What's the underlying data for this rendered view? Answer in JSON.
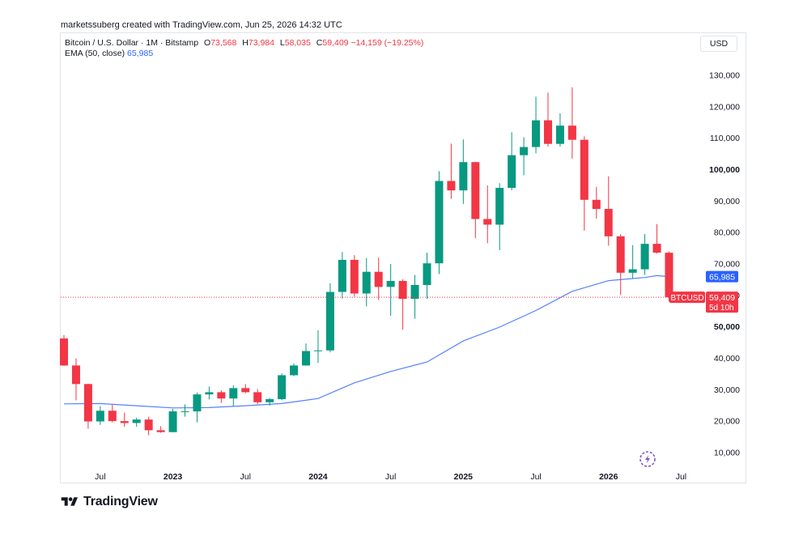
{
  "credit": "marketssuberg created with TradingView.com, Jun 25, 2026 14:32 UTC",
  "legend": {
    "symbol": "Bitcoin / U.S. Dollar · 1M · Bitstamp",
    "o_key": "O",
    "o_val": "73,568",
    "h_key": "H",
    "h_val": "73,984",
    "l_key": "L",
    "l_val": "58,035",
    "c_key": "C",
    "c_val": "59,409",
    "change": "−14,159 (−19.25%)",
    "ema_label": "EMA (50, close)",
    "ema_val": "65,985"
  },
  "currency": "USD",
  "brand": "TradingView",
  "colors": {
    "up": "#089981",
    "down": "#f23645",
    "ema": "#2962ff",
    "grid": "#f0f3fa",
    "text": "#131722"
  },
  "chart_data": {
    "type": "candlestick",
    "y_axis": {
      "min": 2000,
      "max": 138000,
      "position": "right",
      "ticks": [
        10000,
        20000,
        30000,
        40000,
        50000,
        60000,
        70000,
        80000,
        90000,
        100000,
        110000,
        120000,
        130000
      ],
      "tick_labels": [
        "10,000",
        "20,000",
        "30,000",
        "40,000",
        "50,000",
        "60,000",
        "70,000",
        "80,000",
        "90,000",
        "100,000",
        "110,000",
        "120,000",
        "130,000"
      ],
      "bold_labels": [
        "50,000",
        "100,000"
      ]
    },
    "x_axis": {
      "ticks": [
        {
          "date": "2022-07",
          "label": "Jul",
          "bold": false
        },
        {
          "date": "2023-01",
          "label": "2023",
          "bold": true
        },
        {
          "date": "2023-07",
          "label": "Jul",
          "bold": false
        },
        {
          "date": "2024-01",
          "label": "2024",
          "bold": true
        },
        {
          "date": "2024-07",
          "label": "Jul",
          "bold": false
        },
        {
          "date": "2025-01",
          "label": "2025",
          "bold": true
        },
        {
          "date": "2025-07",
          "label": "Jul",
          "bold": false
        },
        {
          "date": "2026-01",
          "label": "2026",
          "bold": true
        },
        {
          "date": "2026-07",
          "label": "Jul",
          "bold": false
        }
      ]
    },
    "grid": false,
    "series": [
      {
        "name": "BTCUSD",
        "kind": "ohlc",
        "candles": [
          {
            "date": "2022-04",
            "o": 46300,
            "h": 47400,
            "l": 37500,
            "c": 37700
          },
          {
            "date": "2022-05",
            "o": 37700,
            "h": 40000,
            "l": 26600,
            "c": 31800
          },
          {
            "date": "2022-06",
            "o": 31800,
            "h": 31900,
            "l": 17600,
            "c": 19900
          },
          {
            "date": "2022-07",
            "o": 19900,
            "h": 24700,
            "l": 18800,
            "c": 23300
          },
          {
            "date": "2022-08",
            "o": 23300,
            "h": 25200,
            "l": 19600,
            "c": 20000
          },
          {
            "date": "2022-09",
            "o": 20000,
            "h": 22700,
            "l": 18200,
            "c": 19400
          },
          {
            "date": "2022-10",
            "o": 19400,
            "h": 21100,
            "l": 18200,
            "c": 20500
          },
          {
            "date": "2022-11",
            "o": 20500,
            "h": 21400,
            "l": 15500,
            "c": 17100
          },
          {
            "date": "2022-12",
            "o": 17100,
            "h": 18400,
            "l": 16300,
            "c": 16500
          },
          {
            "date": "2023-01",
            "o": 16500,
            "h": 23900,
            "l": 16500,
            "c": 23100
          },
          {
            "date": "2023-02",
            "o": 23100,
            "h": 25300,
            "l": 21400,
            "c": 23100
          },
          {
            "date": "2023-03",
            "o": 23100,
            "h": 29100,
            "l": 19600,
            "c": 28500
          },
          {
            "date": "2023-04",
            "o": 28500,
            "h": 31000,
            "l": 26900,
            "c": 29200
          },
          {
            "date": "2023-05",
            "o": 29200,
            "h": 29800,
            "l": 25800,
            "c": 27200
          },
          {
            "date": "2023-06",
            "o": 27200,
            "h": 31400,
            "l": 24800,
            "c": 30500
          },
          {
            "date": "2023-07",
            "o": 30500,
            "h": 31800,
            "l": 28900,
            "c": 29200
          },
          {
            "date": "2023-08",
            "o": 29200,
            "h": 30200,
            "l": 25400,
            "c": 26000
          },
          {
            "date": "2023-09",
            "o": 26000,
            "h": 27400,
            "l": 24900,
            "c": 27000
          },
          {
            "date": "2023-10",
            "o": 27000,
            "h": 35200,
            "l": 26600,
            "c": 34600
          },
          {
            "date": "2023-11",
            "o": 34600,
            "h": 38400,
            "l": 34300,
            "c": 37700
          },
          {
            "date": "2023-12",
            "o": 37700,
            "h": 44700,
            "l": 37600,
            "c": 42300
          },
          {
            "date": "2024-01",
            "o": 42300,
            "h": 48900,
            "l": 38500,
            "c": 42500
          },
          {
            "date": "2024-02",
            "o": 42500,
            "h": 63900,
            "l": 41900,
            "c": 61100
          },
          {
            "date": "2024-03",
            "o": 61100,
            "h": 73800,
            "l": 59000,
            "c": 71300
          },
          {
            "date": "2024-04",
            "o": 71300,
            "h": 72800,
            "l": 59600,
            "c": 60600
          },
          {
            "date": "2024-05",
            "o": 60600,
            "h": 71900,
            "l": 56500,
            "c": 67500
          },
          {
            "date": "2024-06",
            "o": 67500,
            "h": 72000,
            "l": 58500,
            "c": 62700
          },
          {
            "date": "2024-07",
            "o": 62700,
            "h": 70000,
            "l": 53500,
            "c": 64600
          },
          {
            "date": "2024-08",
            "o": 64600,
            "h": 65100,
            "l": 49100,
            "c": 58900
          },
          {
            "date": "2024-09",
            "o": 58900,
            "h": 66500,
            "l": 52600,
            "c": 63300
          },
          {
            "date": "2024-10",
            "o": 63300,
            "h": 73600,
            "l": 58900,
            "c": 70200
          },
          {
            "date": "2024-11",
            "o": 70200,
            "h": 99500,
            "l": 66800,
            "c": 96400
          },
          {
            "date": "2024-12",
            "o": 96400,
            "h": 108300,
            "l": 90700,
            "c": 93400
          },
          {
            "date": "2025-01",
            "o": 93400,
            "h": 109600,
            "l": 89100,
            "c": 102400
          },
          {
            "date": "2025-02",
            "o": 102400,
            "h": 102500,
            "l": 78200,
            "c": 84300
          },
          {
            "date": "2025-03",
            "o": 84300,
            "h": 95000,
            "l": 76600,
            "c": 82500
          },
          {
            "date": "2025-04",
            "o": 82500,
            "h": 95700,
            "l": 74400,
            "c": 94200
          },
          {
            "date": "2025-05",
            "o": 94200,
            "h": 111900,
            "l": 93400,
            "c": 104600
          },
          {
            "date": "2025-06",
            "o": 104600,
            "h": 110300,
            "l": 98200,
            "c": 107200
          },
          {
            "date": "2025-07",
            "o": 107200,
            "h": 123200,
            "l": 105200,
            "c": 115700
          },
          {
            "date": "2025-08",
            "o": 115700,
            "h": 124500,
            "l": 107300,
            "c": 108200
          },
          {
            "date": "2025-09",
            "o": 108200,
            "h": 117900,
            "l": 107300,
            "c": 114000
          },
          {
            "date": "2025-10",
            "o": 114000,
            "h": 126200,
            "l": 103500,
            "c": 109500
          },
          {
            "date": "2025-11",
            "o": 109500,
            "h": 110600,
            "l": 80600,
            "c": 90400
          },
          {
            "date": "2025-12",
            "o": 90400,
            "h": 94500,
            "l": 84400,
            "c": 87500
          },
          {
            "date": "2026-01",
            "o": 87500,
            "h": 97900,
            "l": 75800,
            "c": 78800
          },
          {
            "date": "2026-02",
            "o": 78800,
            "h": 79500,
            "l": 60100,
            "c": 67200
          },
          {
            "date": "2026-03",
            "o": 67200,
            "h": 76000,
            "l": 65300,
            "c": 68300
          },
          {
            "date": "2026-04",
            "o": 68300,
            "h": 79500,
            "l": 66500,
            "c": 76400
          },
          {
            "date": "2026-05",
            "o": 76400,
            "h": 82700,
            "l": 73300,
            "c": 73600
          },
          {
            "date": "2026-06",
            "o": 73568,
            "h": 73984,
            "l": 58035,
            "c": 59409
          }
        ]
      },
      {
        "name": "EMA (50, close)",
        "kind": "line",
        "points": [
          {
            "date": "2022-04",
            "v": 25500
          },
          {
            "date": "2022-07",
            "v": 25600
          },
          {
            "date": "2022-10",
            "v": 24900
          },
          {
            "date": "2023-01",
            "v": 24200
          },
          {
            "date": "2023-04",
            "v": 24300
          },
          {
            "date": "2023-07",
            "v": 24900
          },
          {
            "date": "2023-10",
            "v": 25600
          },
          {
            "date": "2024-01",
            "v": 27200
          },
          {
            "date": "2024-04",
            "v": 32200
          },
          {
            "date": "2024-07",
            "v": 35800
          },
          {
            "date": "2024-10",
            "v": 38800
          },
          {
            "date": "2025-01",
            "v": 45500
          },
          {
            "date": "2025-04",
            "v": 49900
          },
          {
            "date": "2025-07",
            "v": 55200
          },
          {
            "date": "2025-10",
            "v": 61300
          },
          {
            "date": "2026-01",
            "v": 64700
          },
          {
            "date": "2026-04",
            "v": 65700
          },
          {
            "date": "2026-05",
            "v": 66300
          },
          {
            "date": "2026-06",
            "v": 65985
          }
        ]
      }
    ],
    "price_labels": [
      {
        "series": "EMA (50, close)",
        "value": 65985,
        "text": "65,985",
        "color": "#2962ff"
      },
      {
        "series": "BTCUSD",
        "value": 59409,
        "text": "59,409",
        "subtext": "5d 10h",
        "name_tag": "BTCUSD",
        "color": "#f23645"
      }
    ]
  }
}
